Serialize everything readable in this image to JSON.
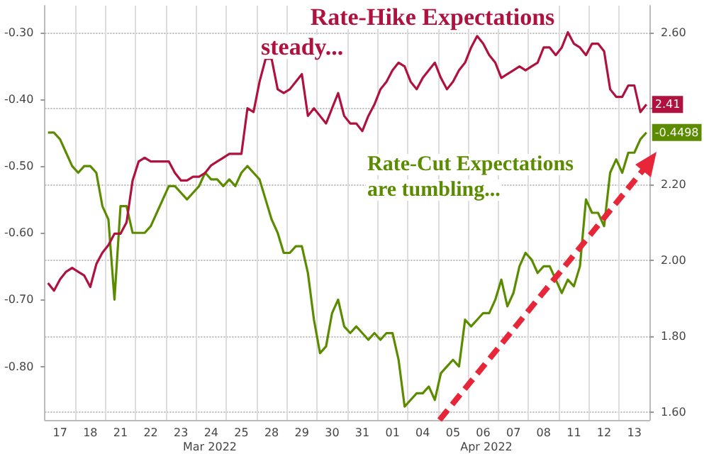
{
  "chart_data": {
    "type": "line",
    "categories": [
      null,
      null,
      "17",
      null,
      null,
      null,
      null,
      "18",
      null,
      null,
      null,
      null,
      "21",
      null,
      null,
      null,
      null,
      "22",
      null,
      null,
      null,
      null,
      "23",
      null,
      null,
      null,
      null,
      "24",
      null,
      null,
      null,
      null,
      "25",
      null,
      null,
      null,
      null,
      "28",
      null,
      null,
      null,
      null,
      "29",
      null,
      null,
      null,
      null,
      "30",
      null,
      null,
      null,
      null,
      "31",
      null,
      null,
      null,
      null,
      "01",
      null,
      null,
      null,
      null,
      "04",
      null,
      null,
      null,
      null,
      "05",
      null,
      null,
      null,
      null,
      "06",
      null,
      null,
      null,
      null,
      "07",
      null,
      null,
      null,
      null,
      "08",
      null,
      null,
      null,
      null,
      "11",
      null,
      null,
      null,
      null,
      "12",
      null,
      null,
      null,
      null,
      "13",
      null,
      null
    ],
    "series": [
      {
        "color": "#5b8c00",
        "axis": "y",
        "value_labels": [
          null,
          null,
          null,
          null,
          null,
          null,
          null,
          null,
          null,
          null,
          null,
          null,
          null,
          null,
          null,
          null,
          null,
          null,
          null,
          null,
          null,
          null,
          null,
          null,
          null,
          null,
          null,
          null,
          null,
          null,
          null,
          null,
          null,
          null,
          null,
          null,
          null,
          null,
          null,
          null,
          null,
          null,
          null,
          null,
          null,
          null,
          null,
          null,
          null,
          null,
          null,
          null,
          null,
          null,
          null,
          null,
          null,
          null,
          null,
          null,
          null,
          null,
          null,
          null,
          null,
          null,
          null,
          null,
          null,
          null,
          null,
          null,
          null,
          null,
          null,
          null,
          null,
          null,
          null,
          null,
          null,
          null,
          null,
          null,
          null,
          null,
          null,
          null,
          null,
          null,
          null,
          null,
          null,
          null,
          null,
          null,
          null,
          null,
          null,
          "-0.4498"
        ],
        "values": [
          -0.45,
          -0.45,
          -0.46,
          -0.48,
          -0.5,
          -0.51,
          -0.5,
          -0.5,
          -0.51,
          -0.56,
          -0.58,
          -0.7,
          -0.56,
          -0.56,
          -0.6,
          -0.6,
          -0.6,
          -0.59,
          -0.57,
          -0.55,
          -0.53,
          -0.53,
          -0.54,
          -0.55,
          -0.54,
          -0.53,
          -0.51,
          -0.52,
          -0.52,
          -0.53,
          -0.52,
          -0.53,
          -0.51,
          -0.5,
          -0.51,
          -0.52,
          -0.55,
          -0.58,
          -0.6,
          -0.63,
          -0.63,
          -0.62,
          -0.62,
          -0.66,
          -0.73,
          -0.78,
          -0.77,
          -0.72,
          -0.7,
          -0.74,
          -0.75,
          -0.74,
          -0.75,
          -0.76,
          -0.75,
          -0.76,
          -0.75,
          -0.75,
          -0.79,
          -0.86,
          -0.85,
          -0.84,
          -0.84,
          -0.83,
          -0.85,
          -0.81,
          -0.8,
          -0.79,
          -0.8,
          -0.73,
          -0.74,
          -0.73,
          -0.72,
          -0.72,
          -0.7,
          -0.67,
          -0.71,
          -0.69,
          -0.65,
          -0.63,
          -0.64,
          -0.66,
          -0.65,
          -0.65,
          -0.67,
          -0.69,
          -0.67,
          -0.68,
          -0.65,
          -0.55,
          -0.57,
          -0.57,
          -0.59,
          -0.51,
          -0.49,
          -0.51,
          -0.48,
          -0.48,
          -0.46,
          -0.4498
        ]
      },
      {
        "color": "#b0123f",
        "axis": "y2",
        "value_labels": [
          null,
          null,
          null,
          null,
          null,
          null,
          null,
          null,
          null,
          null,
          null,
          null,
          null,
          null,
          null,
          null,
          null,
          null,
          null,
          null,
          null,
          null,
          null,
          null,
          null,
          null,
          null,
          null,
          null,
          null,
          null,
          null,
          null,
          null,
          null,
          null,
          null,
          null,
          null,
          null,
          null,
          null,
          null,
          null,
          null,
          null,
          null,
          null,
          null,
          null,
          null,
          null,
          null,
          null,
          null,
          null,
          null,
          null,
          null,
          null,
          null,
          null,
          null,
          null,
          null,
          null,
          null,
          null,
          null,
          null,
          null,
          null,
          null,
          null,
          null,
          null,
          null,
          null,
          null,
          null,
          null,
          null,
          null,
          null,
          null,
          null,
          null,
          null,
          null,
          null,
          null,
          null,
          null,
          null,
          null,
          null,
          null,
          null,
          null,
          "2.41"
        ],
        "values": [
          1.94,
          1.92,
          1.95,
          1.97,
          1.98,
          1.97,
          1.96,
          1.93,
          1.99,
          2.02,
          2.04,
          2.07,
          2.07,
          2.1,
          2.21,
          2.26,
          2.27,
          2.26,
          2.26,
          2.26,
          2.26,
          2.23,
          2.21,
          2.21,
          2.22,
          2.22,
          2.23,
          2.25,
          2.26,
          2.27,
          2.28,
          2.28,
          2.28,
          2.4,
          2.39,
          2.47,
          2.53,
          2.53,
          2.45,
          2.44,
          2.45,
          2.47,
          2.49,
          2.38,
          2.4,
          2.38,
          2.36,
          2.4,
          2.44,
          2.38,
          2.36,
          2.36,
          2.34,
          2.38,
          2.41,
          2.45,
          2.47,
          2.5,
          2.52,
          2.51,
          2.47,
          2.45,
          2.48,
          2.5,
          2.52,
          2.48,
          2.45,
          2.47,
          2.5,
          2.52,
          2.56,
          2.59,
          2.57,
          2.54,
          2.52,
          2.48,
          2.49,
          2.5,
          2.51,
          2.5,
          2.51,
          2.52,
          2.56,
          2.56,
          2.54,
          2.56,
          2.6,
          2.57,
          2.56,
          2.54,
          2.57,
          2.57,
          2.55,
          2.45,
          2.43,
          2.43,
          2.46,
          2.46,
          2.39,
          2.41
        ]
      }
    ],
    "ylim": [
      -0.88,
      -0.26
    ],
    "yticks": [
      {
        "value": -0.3,
        "label": "-0.30"
      },
      {
        "value": -0.4,
        "label": "-0.40"
      },
      {
        "value": -0.5,
        "label": "-0.50"
      },
      {
        "value": -0.6,
        "label": "-0.60"
      },
      {
        "value": -0.7,
        "label": "-0.70"
      },
      {
        "value": -0.8,
        "label": "-0.80"
      }
    ],
    "y2lim": [
      1.58,
      2.67
    ],
    "y2ticks": [
      {
        "value": 1.6,
        "label": "1.60"
      },
      {
        "value": 1.8,
        "label": "1.80"
      },
      {
        "value": 2.0,
        "label": "2.00"
      },
      {
        "value": 2.2,
        "label": "2.20"
      },
      {
        "value": 2.4,
        "label": null
      },
      {
        "value": 2.6,
        "label": "2.60"
      }
    ],
    "grid": true,
    "marker": "none",
    "line_style": "solid",
    "annotations": [
      "Rate-Hike Expectations",
      "steady...",
      "Rate-Cut Expectations",
      "are tumbling...",
      "Mar 2022",
      "Apr 2022"
    ]
  }
}
